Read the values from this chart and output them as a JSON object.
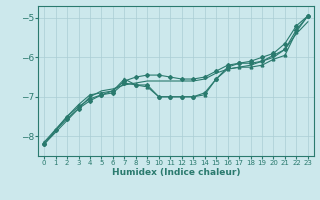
{
  "xlabel": "Humidex (Indice chaleur)",
  "ylabel": "",
  "bg_color": "#cce8ec",
  "grid_color": "#aacdd4",
  "line_color": "#2a7a6e",
  "xlim": [
    -0.5,
    23.5
  ],
  "ylim": [
    -8.5,
    -4.7
  ],
  "xticks": [
    0,
    1,
    2,
    3,
    4,
    5,
    6,
    7,
    8,
    9,
    10,
    11,
    12,
    13,
    14,
    15,
    16,
    17,
    18,
    19,
    20,
    21,
    22,
    23
  ],
  "yticks": [
    -8,
    -7,
    -6,
    -5
  ],
  "series": [
    {
      "x": [
        0,
        1,
        2,
        3,
        4,
        5,
        6,
        7,
        8,
        9,
        10,
        11,
        12,
        13,
        14,
        15,
        16,
        17,
        18,
        19,
        20,
        21,
        22,
        23
      ],
      "y": [
        -8.2,
        -7.9,
        -7.6,
        -7.3,
        -7.0,
        -6.85,
        -6.8,
        -6.7,
        -6.65,
        -6.6,
        -6.6,
        -6.6,
        -6.6,
        -6.6,
        -6.55,
        -6.4,
        -6.3,
        -6.25,
        -6.2,
        -6.1,
        -6.0,
        -5.8,
        -5.4,
        -5.1
      ],
      "marker": null
    },
    {
      "x": [
        0,
        1,
        2,
        3,
        4,
        5,
        6,
        7,
        8,
        9,
        10,
        11,
        12,
        13,
        14,
        15,
        16,
        17,
        18,
        19,
        20,
        21,
        22,
        23
      ],
      "y": [
        -8.2,
        -7.85,
        -7.55,
        -7.3,
        -7.1,
        -6.95,
        -6.85,
        -6.6,
        -6.5,
        -6.45,
        -6.45,
        -6.5,
        -6.55,
        -6.55,
        -6.5,
        -6.35,
        -6.2,
        -6.15,
        -6.1,
        -6.0,
        -5.9,
        -5.65,
        -5.2,
        -4.95
      ],
      "marker": "D"
    },
    {
      "x": [
        0,
        2,
        3,
        4,
        5,
        6,
        7,
        8,
        9,
        10,
        11,
        12,
        13,
        14,
        15,
        16,
        17,
        18,
        19,
        20,
        21,
        22,
        23
      ],
      "y": [
        -8.15,
        -7.5,
        -7.2,
        -6.95,
        -6.9,
        -6.85,
        -6.55,
        -6.7,
        -6.75,
        -7.0,
        -7.0,
        -7.0,
        -7.0,
        -6.95,
        -6.55,
        -6.3,
        -6.25,
        -6.25,
        -6.2,
        -6.05,
        -5.95,
        -5.35,
        -4.95
      ],
      "marker": "^"
    },
    {
      "x": [
        0,
        2,
        3,
        4,
        5,
        6,
        7,
        8,
        9,
        10,
        11,
        12,
        13,
        14,
        15,
        16,
        17,
        18,
        19,
        20,
        21,
        22,
        23
      ],
      "y": [
        -8.2,
        -7.5,
        -7.25,
        -7.05,
        -6.95,
        -6.9,
        -6.65,
        -6.7,
        -6.7,
        -7.0,
        -7.0,
        -7.0,
        -7.0,
        -6.9,
        -6.55,
        -6.25,
        -6.15,
        -6.15,
        -6.1,
        -5.95,
        -5.8,
        -5.3,
        -4.95
      ],
      "marker": "D"
    }
  ]
}
